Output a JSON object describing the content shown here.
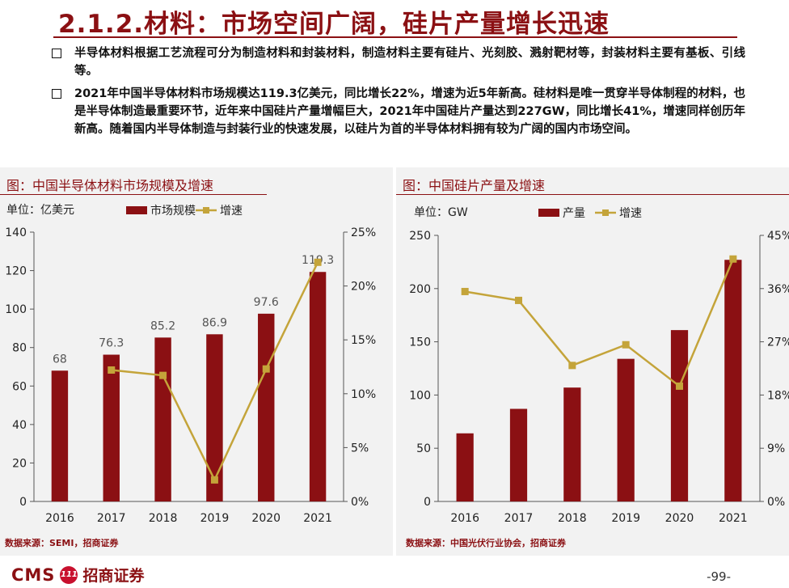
{
  "header": {
    "title": "2.1.2.材料：市场空间广阔，硅片产量增长迅速"
  },
  "bullets": [
    "半导体材料根据工艺流程可分为制造材料和封装材料，制造材料主要有硅片、光刻胶、溅射靶材等，封装材料主要有基板、引线等。",
    "2021年中国半导体材料市场规模达119.3亿美元，同比增长22%，增速为近5年新高。硅材料是唯一贯穿半导体制程的材料，也是半导体制造最重要环节，近年来中国硅片产量增幅巨大，2021年中国硅片产量达到227GW，同比增长41%，增速同样创历年新高。随着国内半导体制造与封装行业的快速发展，以硅片为首的半导体材料拥有较为广阔的国内市场空间。"
  ],
  "chart_data": [
    {
      "type": "bar+line",
      "title": "图：中国半导体材料市场规模及增速",
      "unit_label": "单位：亿美元",
      "categories": [
        "2016",
        "2017",
        "2018",
        "2019",
        "2020",
        "2021"
      ],
      "series": [
        {
          "name": "市场规模",
          "type": "bar",
          "axis": "left",
          "values": [
            68,
            76.3,
            85.2,
            86.9,
            97.6,
            119.3
          ],
          "data_labels": [
            "68",
            "76.3",
            "85.2",
            "86.9",
            "97.6",
            "119.3"
          ]
        },
        {
          "name": "增速",
          "type": "line",
          "axis": "right",
          "values": [
            null,
            12.2,
            11.7,
            2.0,
            12.3,
            22.2
          ]
        }
      ],
      "ylim_left": [
        0,
        140
      ],
      "yticks_left": [
        "0",
        "20",
        "40",
        "60",
        "80",
        "100",
        "120",
        "140"
      ],
      "ylim_right": [
        0,
        25
      ],
      "yticks_right": [
        "0%",
        "5%",
        "10%",
        "15%",
        "20%",
        "25%"
      ],
      "source": "数据来源：SEMI，招商证券",
      "bar_color": "#8b1013",
      "line_color": "#c4a43a"
    },
    {
      "type": "bar+line",
      "title": "图：中国硅片产量及增速",
      "unit_label": "单位：GW",
      "categories": [
        "2016",
        "2017",
        "2018",
        "2019",
        "2020",
        "2021"
      ],
      "series": [
        {
          "name": "产量",
          "type": "bar",
          "axis": "left",
          "values": [
            64,
            87,
            107,
            134,
            161,
            227
          ]
        },
        {
          "name": "增速",
          "type": "line",
          "axis": "right",
          "values": [
            35.5,
            34,
            23,
            26.5,
            19.5,
            41
          ]
        }
      ],
      "ylim_left": [
        0,
        250
      ],
      "yticks_left": [
        "0",
        "50",
        "100",
        "150",
        "200",
        "250"
      ],
      "ylim_right": [
        0,
        45
      ],
      "yticks_right": [
        "0%",
        "9%",
        "18%",
        "27%",
        "36%",
        "45%"
      ],
      "source": "数据来源：中国光伏行业协会，招商证券",
      "bar_color": "#8b1013",
      "line_color": "#c4a43a"
    }
  ],
  "footer": {
    "logo_latin": "CMS",
    "logo_badge": "111",
    "logo_cn": "招商证券",
    "page": "-99-"
  }
}
